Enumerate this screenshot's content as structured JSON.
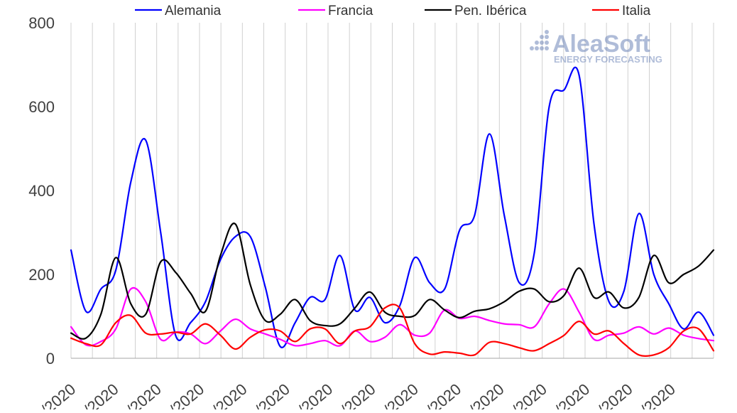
{
  "chart_data": {
    "type": "line",
    "title": "",
    "xlabel": "",
    "ylabel": "",
    "ylim": [
      0,
      800
    ],
    "yticks": [
      0,
      200,
      400,
      600,
      800
    ],
    "grid": "vertical",
    "legend_position": "top",
    "x_tick_labels": [
      "/2020",
      "/2020",
      "/2020",
      "/2020",
      "/2020",
      "/2020",
      "/2020",
      "/2020",
      "/2020",
      "/2020",
      "/2020",
      "/2020",
      "/2020",
      "/2020",
      "/2020"
    ],
    "series": [
      {
        "name": "Alemania",
        "color": "#0000ff",
        "values": [
          258,
          112,
          165,
          210,
          420,
          520,
          300,
          55,
          85,
          135,
          235,
          290,
          290,
          170,
          28,
          85,
          145,
          140,
          245,
          115,
          145,
          85,
          125,
          240,
          180,
          165,
          305,
          340,
          535,
          340,
          180,
          250,
          600,
          640,
          675,
          320,
          135,
          160,
          345,
          200,
          130,
          70,
          110,
          55
        ]
      },
      {
        "name": "Francia",
        "color": "#ff00ff",
        "values": [
          75,
          32,
          40,
          70,
          165,
          135,
          45,
          62,
          58,
          35,
          65,
          93,
          70,
          58,
          45,
          30,
          35,
          42,
          30,
          65,
          40,
          50,
          80,
          55,
          60,
          115,
          95,
          100,
          90,
          82,
          80,
          75,
          130,
          165,
          110,
          45,
          55,
          60,
          75,
          58,
          72,
          55,
          47,
          42
        ]
      },
      {
        "name": "Pen. Ibérica",
        "color": "#000000",
        "values": [
          60,
          48,
          105,
          240,
          130,
          105,
          230,
          205,
          155,
          112,
          245,
          320,
          175,
          90,
          105,
          140,
          90,
          78,
          82,
          120,
          158,
          110,
          100,
          102,
          140,
          115,
          97,
          112,
          118,
          135,
          160,
          165,
          135,
          150,
          215,
          145,
          158,
          120,
          145,
          245,
          180,
          200,
          220,
          258
        ]
      },
      {
        "name": "Italia",
        "color": "#ff0000",
        "values": [
          48,
          35,
          32,
          85,
          102,
          60,
          58,
          62,
          58,
          82,
          55,
          22,
          50,
          68,
          65,
          40,
          70,
          70,
          35,
          65,
          75,
          120,
          120,
          35,
          10,
          15,
          12,
          8,
          38,
          35,
          25,
          18,
          35,
          55,
          88,
          58,
          65,
          35,
          8,
          8,
          25,
          65,
          70,
          18
        ]
      }
    ]
  },
  "logo": {
    "brand_text": "AleaSoft",
    "tagline_text": "ENERGY FORECASTING"
  }
}
